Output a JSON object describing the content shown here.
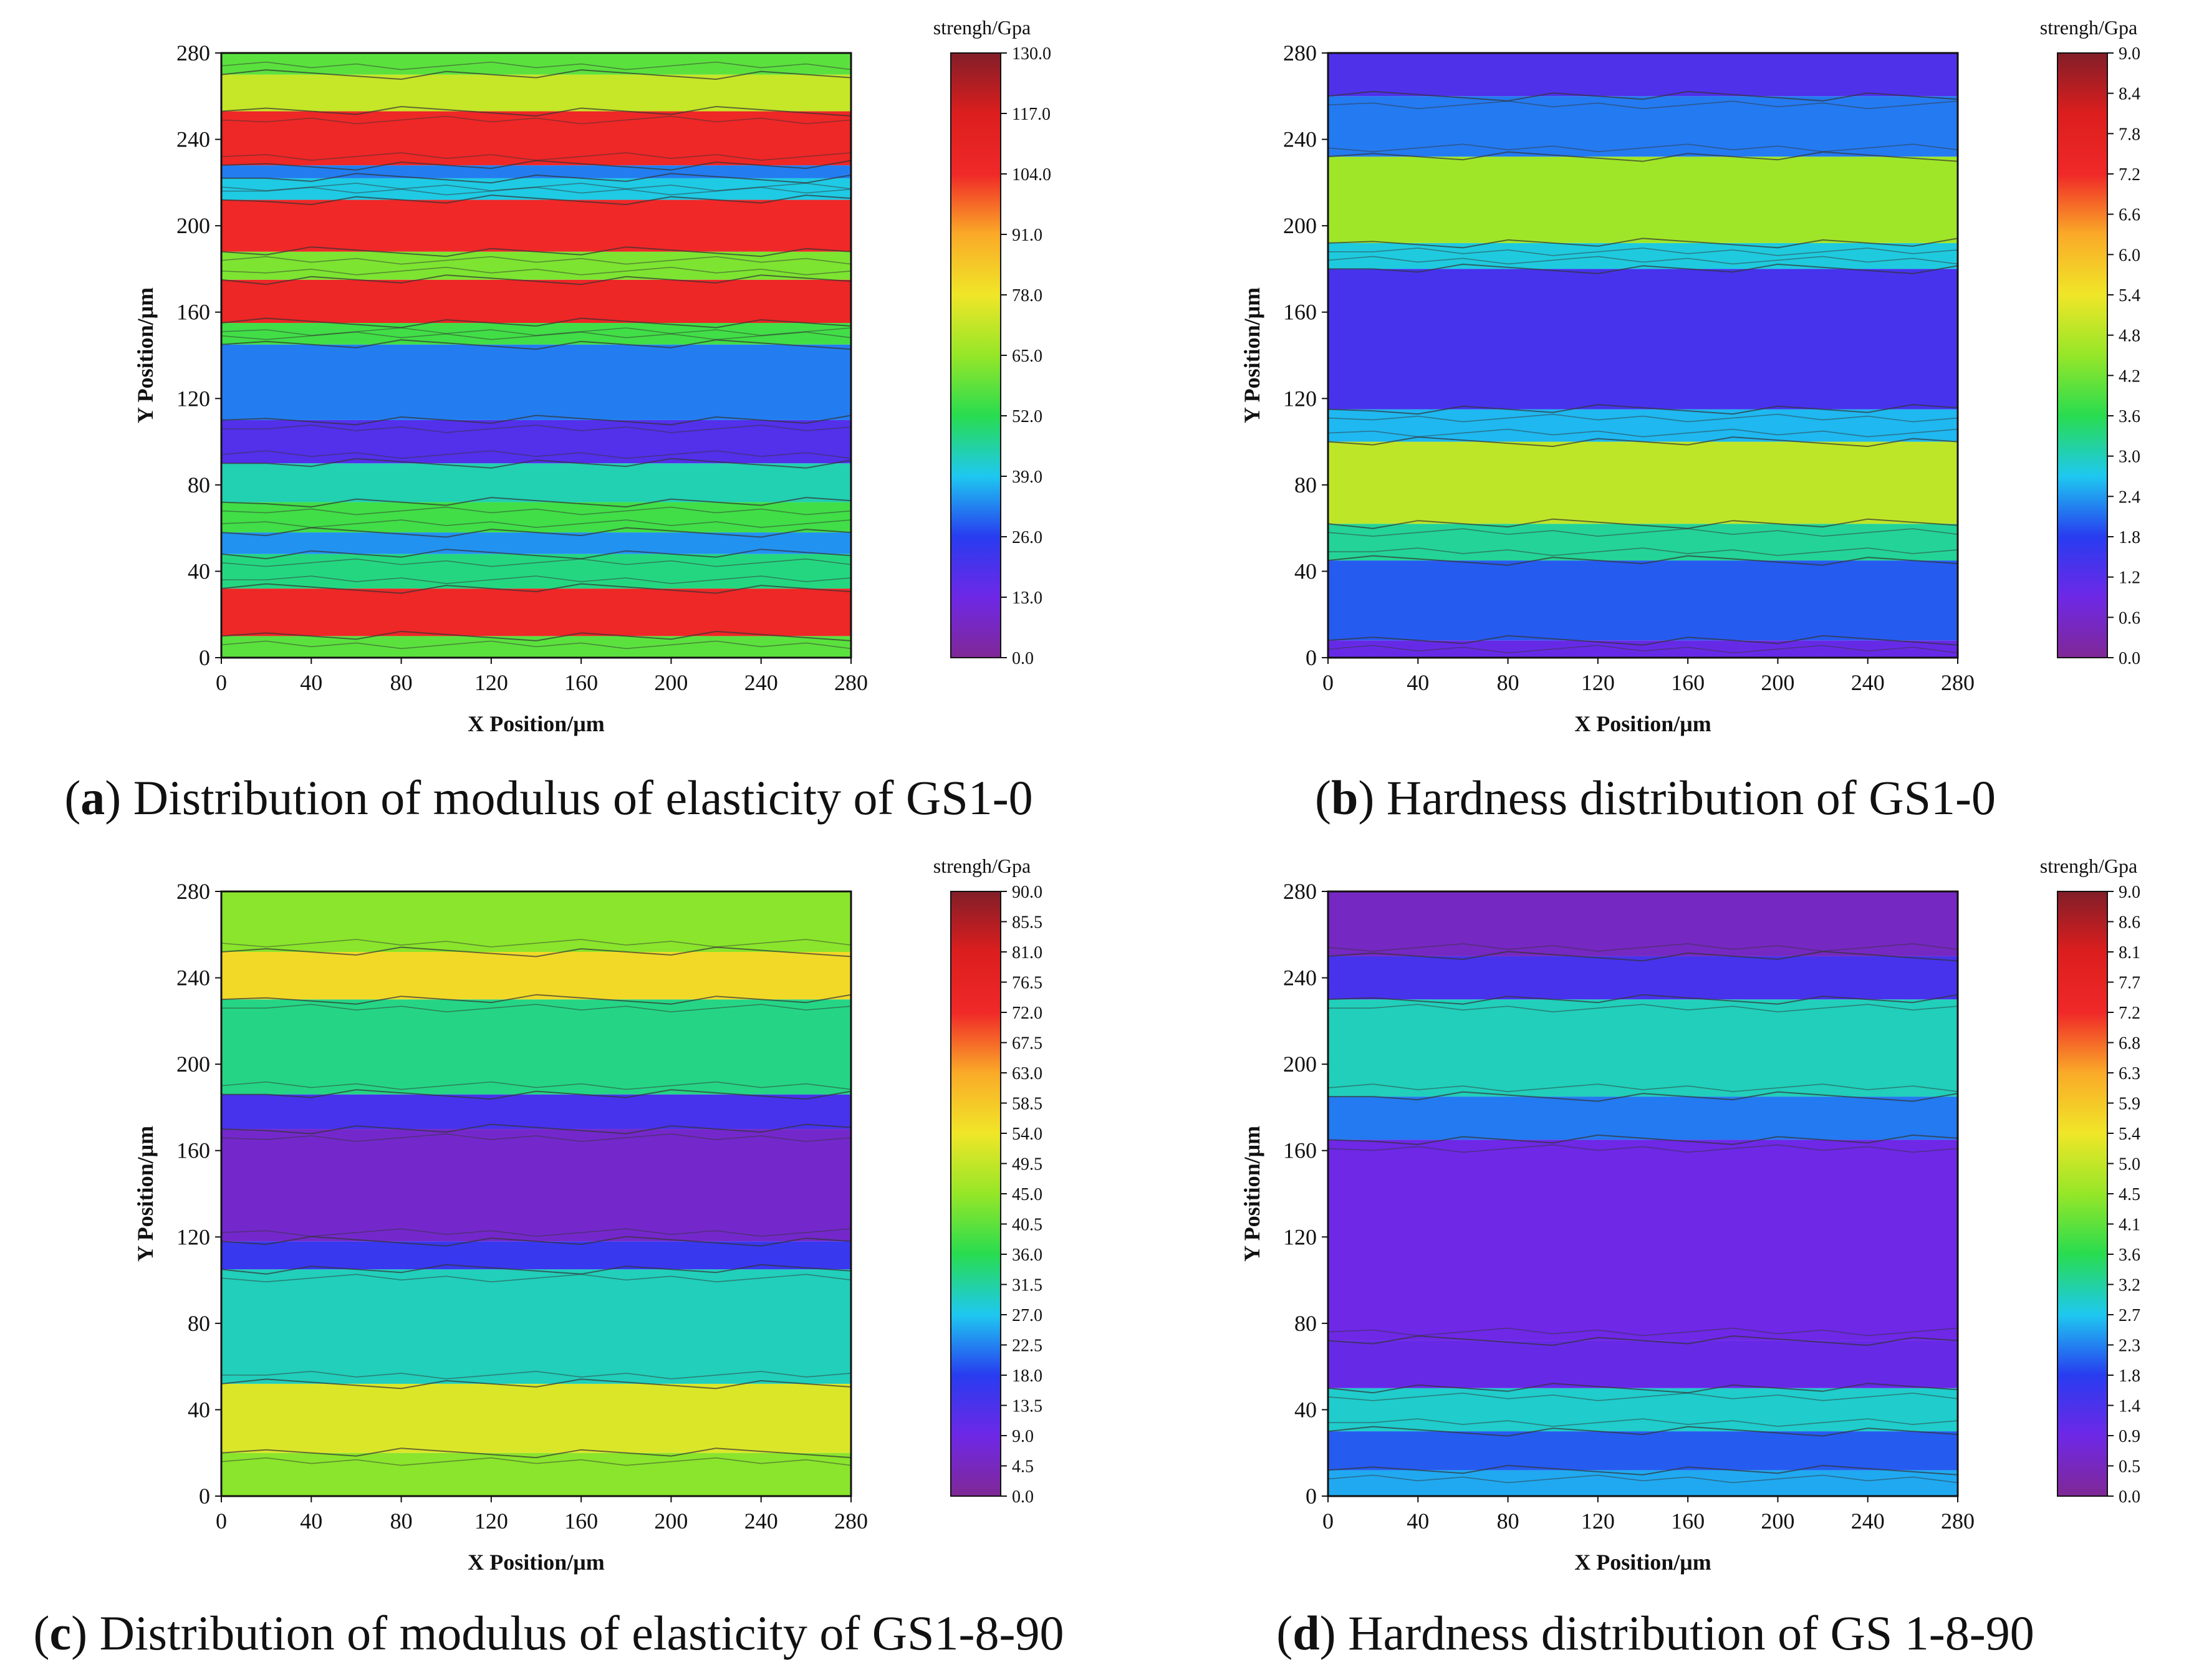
{
  "chart_data": [
    {
      "id": "a",
      "type": "heatmap",
      "subtype": "filled-contour",
      "caption_letter": "a",
      "caption_text": "Distribution of modulus of elasticity of GS1-0",
      "xlabel": "X Position/μm",
      "ylabel": "Y Position/μm",
      "xlim": [
        0,
        280
      ],
      "ylim": [
        0,
        280
      ],
      "x_ticks": [
        "0",
        "40",
        "80",
        "120",
        "160",
        "200",
        "240",
        "280"
      ],
      "y_ticks": [
        "0",
        "40",
        "80",
        "120",
        "160",
        "200",
        "240",
        "280"
      ],
      "colorbar_title": "strengh/Gpa",
      "colorbar_ticks": [
        "0.0",
        "13.0",
        "26.0",
        "39.0",
        "52.0",
        "65.0",
        "78.0",
        "91.0",
        "104.0",
        "117.0",
        "130.0"
      ],
      "vmin": 0,
      "vmax": 130,
      "bands": [
        {
          "y": [
            0,
            10
          ],
          "value": 58
        },
        {
          "y": [
            10,
            32
          ],
          "value": 105
        },
        {
          "y": [
            32,
            48
          ],
          "value": 48
        },
        {
          "y": [
            48,
            58
          ],
          "value": 34
        },
        {
          "y": [
            58,
            72
          ],
          "value": 55
        },
        {
          "y": [
            72,
            90
          ],
          "value": 44
        },
        {
          "y": [
            90,
            110
          ],
          "value": 18
        },
        {
          "y": [
            110,
            145
          ],
          "value": 32
        },
        {
          "y": [
            145,
            155
          ],
          "value": 55
        },
        {
          "y": [
            155,
            175
          ],
          "value": 106
        },
        {
          "y": [
            175,
            188
          ],
          "value": 62
        },
        {
          "y": [
            188,
            212
          ],
          "value": 104
        },
        {
          "y": [
            212,
            222
          ],
          "value": 40
        },
        {
          "y": [
            222,
            228
          ],
          "value": 32
        },
        {
          "y": [
            228,
            253
          ],
          "value": 105
        },
        {
          "y": [
            253,
            270
          ],
          "value": 72
        },
        {
          "y": [
            270,
            280
          ],
          "value": 58
        }
      ]
    },
    {
      "id": "b",
      "type": "heatmap",
      "subtype": "filled-contour",
      "caption_letter": "b",
      "caption_text": "Hardness distribution of GS1-0",
      "xlabel": "X Position/μm",
      "ylabel": "Y Position/μm",
      "xlim": [
        0,
        280
      ],
      "ylim": [
        0,
        280
      ],
      "x_ticks": [
        "0",
        "40",
        "80",
        "120",
        "160",
        "200",
        "240",
        "280"
      ],
      "y_ticks": [
        "0",
        "40",
        "80",
        "120",
        "160",
        "200",
        "240",
        "280"
      ],
      "colorbar_title": "strengh/Gpa",
      "colorbar_ticks": [
        "0.0",
        "0.6",
        "1.2",
        "1.8",
        "2.4",
        "3.0",
        "3.6",
        "4.2",
        "4.8",
        "5.4",
        "6.0",
        "6.6",
        "7.2",
        "7.8",
        "8.4",
        "9.0"
      ],
      "vmin": 0,
      "vmax": 9,
      "bands": [
        {
          "y": [
            0,
            8
          ],
          "value": 1.0
        },
        {
          "y": [
            8,
            45
          ],
          "value": 2.0
        },
        {
          "y": [
            45,
            62
          ],
          "value": 3.2
        },
        {
          "y": [
            62,
            100
          ],
          "value": 4.9
        },
        {
          "y": [
            100,
            115
          ],
          "value": 2.6
        },
        {
          "y": [
            115,
            180
          ],
          "value": 1.4
        },
        {
          "y": [
            180,
            192
          ],
          "value": 2.8
        },
        {
          "y": [
            192,
            232
          ],
          "value": 4.6
        },
        {
          "y": [
            232,
            260
          ],
          "value": 2.2
        },
        {
          "y": [
            260,
            280
          ],
          "value": 1.3
        }
      ]
    },
    {
      "id": "c",
      "type": "heatmap",
      "subtype": "filled-contour",
      "caption_letter": "c",
      "caption_text": "Distribution of modulus of elasticity of GS1-8-90",
      "xlabel": "X Position/μm",
      "ylabel": "Y Position/μm",
      "xlim": [
        0,
        280
      ],
      "ylim": [
        0,
        280
      ],
      "x_ticks": [
        "0",
        "40",
        "80",
        "120",
        "160",
        "200",
        "240",
        "280"
      ],
      "y_ticks": [
        "0",
        "40",
        "80",
        "120",
        "160",
        "200",
        "240",
        "280"
      ],
      "colorbar_title": "strengh/Gpa",
      "colorbar_ticks": [
        "0.0",
        "4.5",
        "9.0",
        "13.5",
        "18.0",
        "22.5",
        "27.0",
        "31.5",
        "36.0",
        "40.5",
        "45.0",
        "49.5",
        "54.0",
        "58.5",
        "63.0",
        "67.5",
        "72.0",
        "76.5",
        "81.0",
        "85.5",
        "90.0"
      ],
      "vmin": 0,
      "vmax": 90,
      "bands": [
        {
          "y": [
            0,
            20
          ],
          "value": 44
        },
        {
          "y": [
            20,
            52
          ],
          "value": 52
        },
        {
          "y": [
            52,
            105
          ],
          "value": 30
        },
        {
          "y": [
            105,
            118
          ],
          "value": 16
        },
        {
          "y": [
            118,
            170
          ],
          "value": 6
        },
        {
          "y": [
            170,
            186
          ],
          "value": 14
        },
        {
          "y": [
            186,
            230
          ],
          "value": 33
        },
        {
          "y": [
            230,
            252
          ],
          "value": 56
        },
        {
          "y": [
            252,
            280
          ],
          "value": 44
        }
      ]
    },
    {
      "id": "d",
      "type": "heatmap",
      "subtype": "filled-contour",
      "caption_letter": "d",
      "caption_text": "Hardness distribution of GS 1-8-90",
      "xlabel": "X Position/μm",
      "ylabel": "Y Position/μm",
      "xlim": [
        0,
        280
      ],
      "ylim": [
        0,
        280
      ],
      "x_ticks": [
        "0",
        "40",
        "80",
        "120",
        "160",
        "200",
        "240",
        "280"
      ],
      "y_ticks": [
        "0",
        "40",
        "80",
        "120",
        "160",
        "200",
        "240",
        "280"
      ],
      "colorbar_title": "strengh/Gpa",
      "colorbar_ticks": [
        "0.0",
        "0.5",
        "0.9",
        "1.4",
        "1.8",
        "2.3",
        "2.7",
        "3.2",
        "3.6",
        "4.1",
        "4.5",
        "5.0",
        "5.4",
        "5.9",
        "6.3",
        "6.8",
        "7.2",
        "7.7",
        "8.1",
        "8.6",
        "9.0"
      ],
      "vmin": 0,
      "vmax": 9,
      "bands": [
        {
          "y": [
            0,
            12
          ],
          "value": 2.5
        },
        {
          "y": [
            12,
            30
          ],
          "value": 2.0
        },
        {
          "y": [
            30,
            50
          ],
          "value": 2.9
        },
        {
          "y": [
            50,
            72
          ],
          "value": 1.0
        },
        {
          "y": [
            72,
            165
          ],
          "value": 0.9
        },
        {
          "y": [
            165,
            185
          ],
          "value": 2.2
        },
        {
          "y": [
            185,
            230
          ],
          "value": 3.0
        },
        {
          "y": [
            230,
            250
          ],
          "value": 1.4
        },
        {
          "y": [
            250,
            280
          ],
          "value": 0.5
        }
      ]
    }
  ]
}
